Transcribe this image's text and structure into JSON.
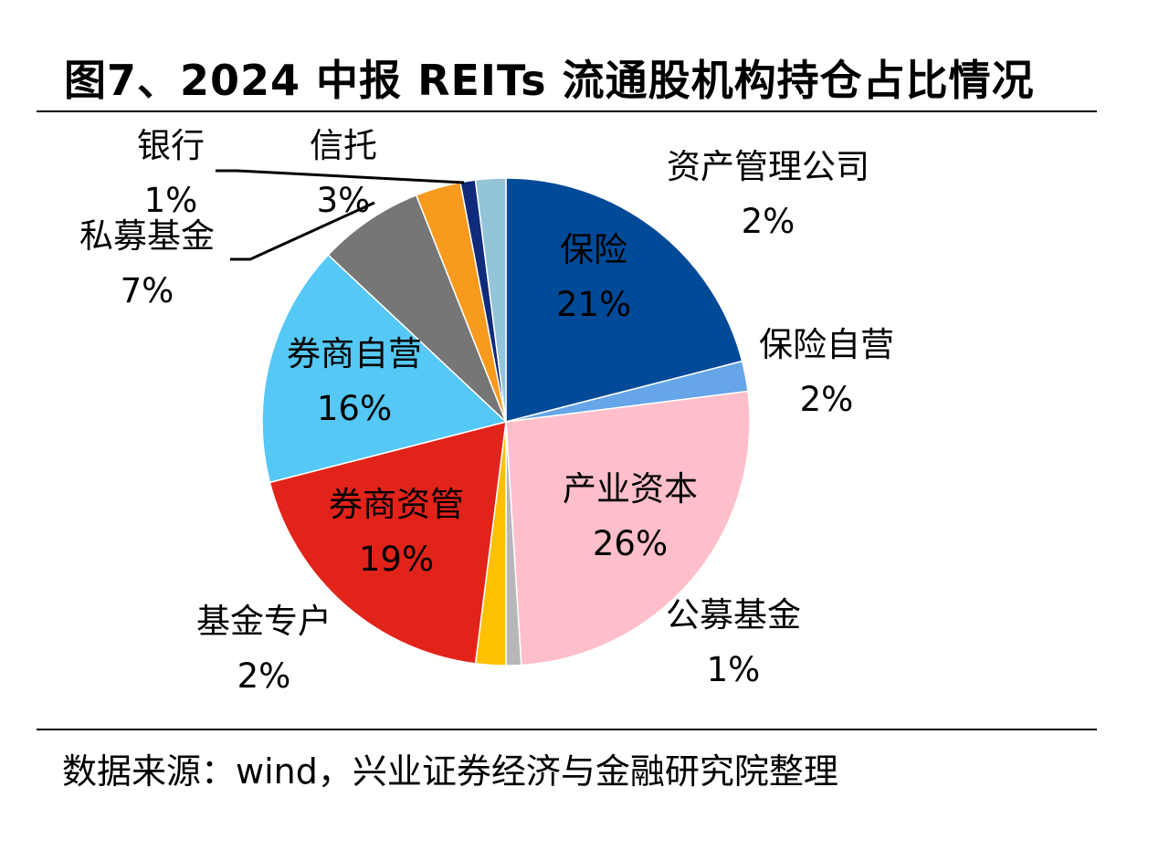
{
  "title": "图7、2024 中报 REITs 流通股机构持仓占比情况",
  "source": "数据来源：wind，兴业证券经济与金融研究院整理",
  "chart_data": {
    "type": "pie",
    "title": "图7、2024 中报 REITs 流通股机构持仓占比情况",
    "start_angle_deg": 0,
    "direction": "clockwise",
    "slices": [
      {
        "label": "保险",
        "value": 21,
        "percent": "21%",
        "color": "#004a98"
      },
      {
        "label": "保险自营",
        "value": 2,
        "percent": "2%",
        "color": "#65a5e8"
      },
      {
        "label": "产业资本",
        "value": 26,
        "percent": "26%",
        "color": "#ffbfca"
      },
      {
        "label": "公募基金",
        "value": 1,
        "percent": "1%",
        "color": "#b7b7b7"
      },
      {
        "label": "基金专户",
        "value": 2,
        "percent": "2%",
        "color": "#ffc000"
      },
      {
        "label": "券商资管",
        "value": 19,
        "percent": "19%",
        "color": "#e2231a"
      },
      {
        "label": "券商自营",
        "value": 16,
        "percent": "16%",
        "color": "#55c8f5"
      },
      {
        "label": "私募基金",
        "value": 7,
        "percent": "7%",
        "color": "#767676"
      },
      {
        "label": "信托",
        "value": 3,
        "percent": "3%",
        "color": "#f79a1e"
      },
      {
        "label": "银行",
        "value": 1,
        "percent": "1%",
        "color": "#102b7b"
      },
      {
        "label": "资产管理公司",
        "value": 2,
        "percent": "2%",
        "color": "#93c4d8"
      }
    ]
  }
}
